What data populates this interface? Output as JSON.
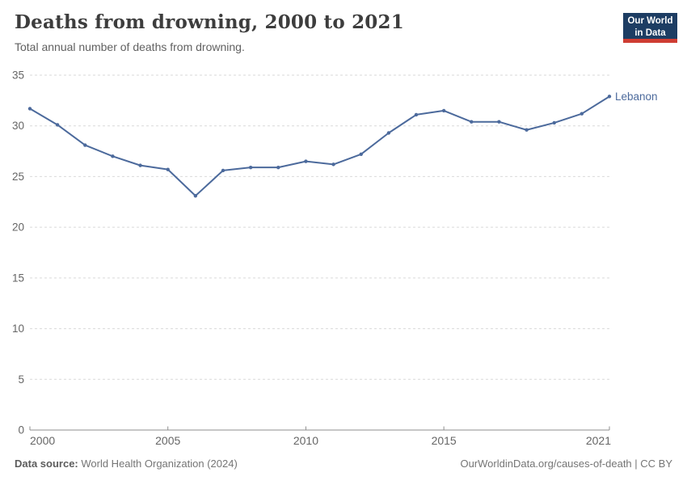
{
  "header": {
    "title": "Deaths from drowning, 2000 to 2021",
    "subtitle": "Total annual number of deaths from drowning."
  },
  "logo": {
    "line1": "Our World",
    "line2": "in Data",
    "bg_color": "#1d3d63",
    "accent_color": "#cf3d33"
  },
  "chart_data": {
    "type": "line",
    "title": "Deaths from drowning, 2000 to 2021",
    "subtitle": "Total annual number of deaths from drowning.",
    "x": [
      2000,
      2001,
      2002,
      2003,
      2004,
      2005,
      2006,
      2007,
      2008,
      2009,
      2010,
      2011,
      2012,
      2013,
      2014,
      2015,
      2016,
      2017,
      2018,
      2019,
      2020,
      2021
    ],
    "series": [
      {
        "name": "Lebanon",
        "color": "#4C6A9C",
        "values": [
          31.7,
          30.1,
          28.1,
          27.0,
          26.1,
          25.7,
          23.1,
          25.6,
          25.9,
          25.9,
          26.5,
          26.2,
          27.2,
          29.3,
          31.1,
          31.5,
          30.4,
          30.4,
          29.6,
          30.3,
          31.2,
          32.9
        ]
      }
    ],
    "xlabel": "",
    "ylabel": "",
    "ylim": [
      0,
      35
    ],
    "yticks": [
      0,
      5,
      10,
      15,
      20,
      25,
      30,
      35
    ],
    "xticks": [
      2000,
      2005,
      2010,
      2015,
      2021
    ],
    "grid": "horizontal-dashed",
    "legend_position": "end-of-line-label",
    "gridline_color": "#d9d9d9",
    "axis_color": "#8f8f8f",
    "tick_label_color": "#666666"
  },
  "footer": {
    "source_label": "Data source:",
    "source_value": " World Health Organization (2024)",
    "attribution": "OurWorldinData.org/causes-of-death | CC BY"
  }
}
